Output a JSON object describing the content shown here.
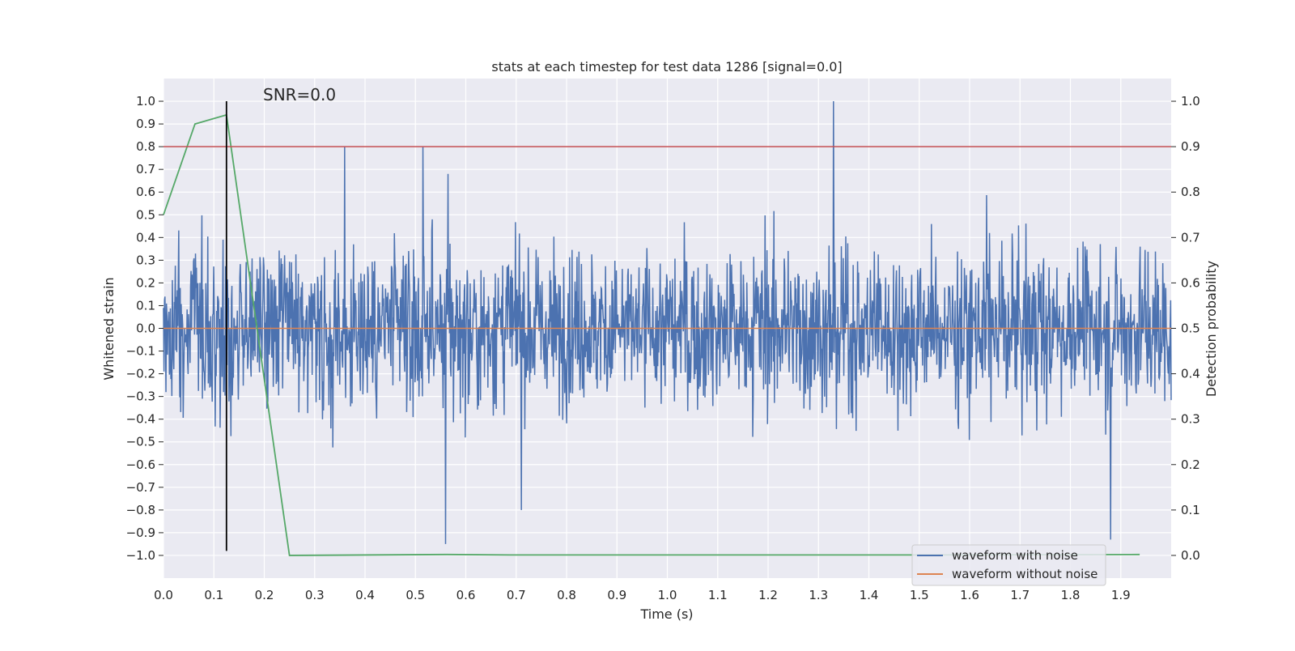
{
  "chart_data": {
    "type": "line",
    "title": "stats at each timestep for test data 1286 [signal=0.0]",
    "xlabel": "Time (s)",
    "ylabel_left": "Whitened strain",
    "ylabel_right": "Detection probability",
    "annotation": "SNR=0.0",
    "xlim": [
      0.0,
      2.0
    ],
    "ylim_left": [
      -1.1,
      1.1
    ],
    "ylim_right": [
      -0.05,
      1.05
    ],
    "xticks": [
      "0.0",
      "0.1",
      "0.2",
      "0.3",
      "0.4",
      "0.5",
      "0.6",
      "0.7",
      "0.8",
      "0.9",
      "1.0",
      "1.1",
      "1.2",
      "1.3",
      "1.4",
      "1.5",
      "1.6",
      "1.7",
      "1.8",
      "1.9"
    ],
    "yticks_left": [
      "1.0",
      "0.9",
      "0.8",
      "0.7",
      "0.6",
      "0.5",
      "0.4",
      "0.3",
      "0.2",
      "0.1",
      "0.0",
      "−0.1",
      "−0.2",
      "−0.3",
      "−0.4",
      "−0.5",
      "−0.6",
      "−0.7",
      "−0.8",
      "−0.9",
      "−1.0"
    ],
    "yticks_right": [
      "1.0",
      "0.9",
      "0.8",
      "0.7",
      "0.6",
      "0.5",
      "0.4",
      "0.3",
      "0.2",
      "0.1",
      "0.0"
    ],
    "grid": true,
    "legend_position": "lower-right",
    "threshold": {
      "axis": "right",
      "value": 0.9,
      "color": "#c44e52"
    },
    "marker_time": {
      "x": 0.125,
      "y_range": [
        -0.98,
        1.0
      ],
      "color": "#000000"
    },
    "series": [
      {
        "name": "waveform with noise",
        "axis": "left",
        "color": "#4c72b0",
        "kind": "noise",
        "sample_count": 2048,
        "envelope": [
          -0.98,
          1.0
        ],
        "peaks": [
          [
            0.36,
            0.8
          ],
          [
            0.515,
            0.8
          ],
          [
            0.56,
            -0.95
          ],
          [
            0.71,
            -0.8
          ],
          [
            1.33,
            1.0
          ],
          [
            1.88,
            -0.93
          ]
        ]
      },
      {
        "name": "waveform without noise",
        "axis": "left",
        "color": "#dd8452",
        "x": [
          0.0,
          2.0
        ],
        "y": [
          0.0,
          0.0
        ]
      },
      {
        "axis": "right",
        "color": "#55a868",
        "x": [
          0.0,
          0.0625,
          0.125,
          0.25,
          0.5625,
          0.6875,
          1.0,
          1.5,
          1.9375
        ],
        "y": [
          0.75,
          0.95,
          0.97,
          0.0,
          0.002,
          0.001,
          0.001,
          0.001,
          0.002
        ]
      }
    ]
  }
}
